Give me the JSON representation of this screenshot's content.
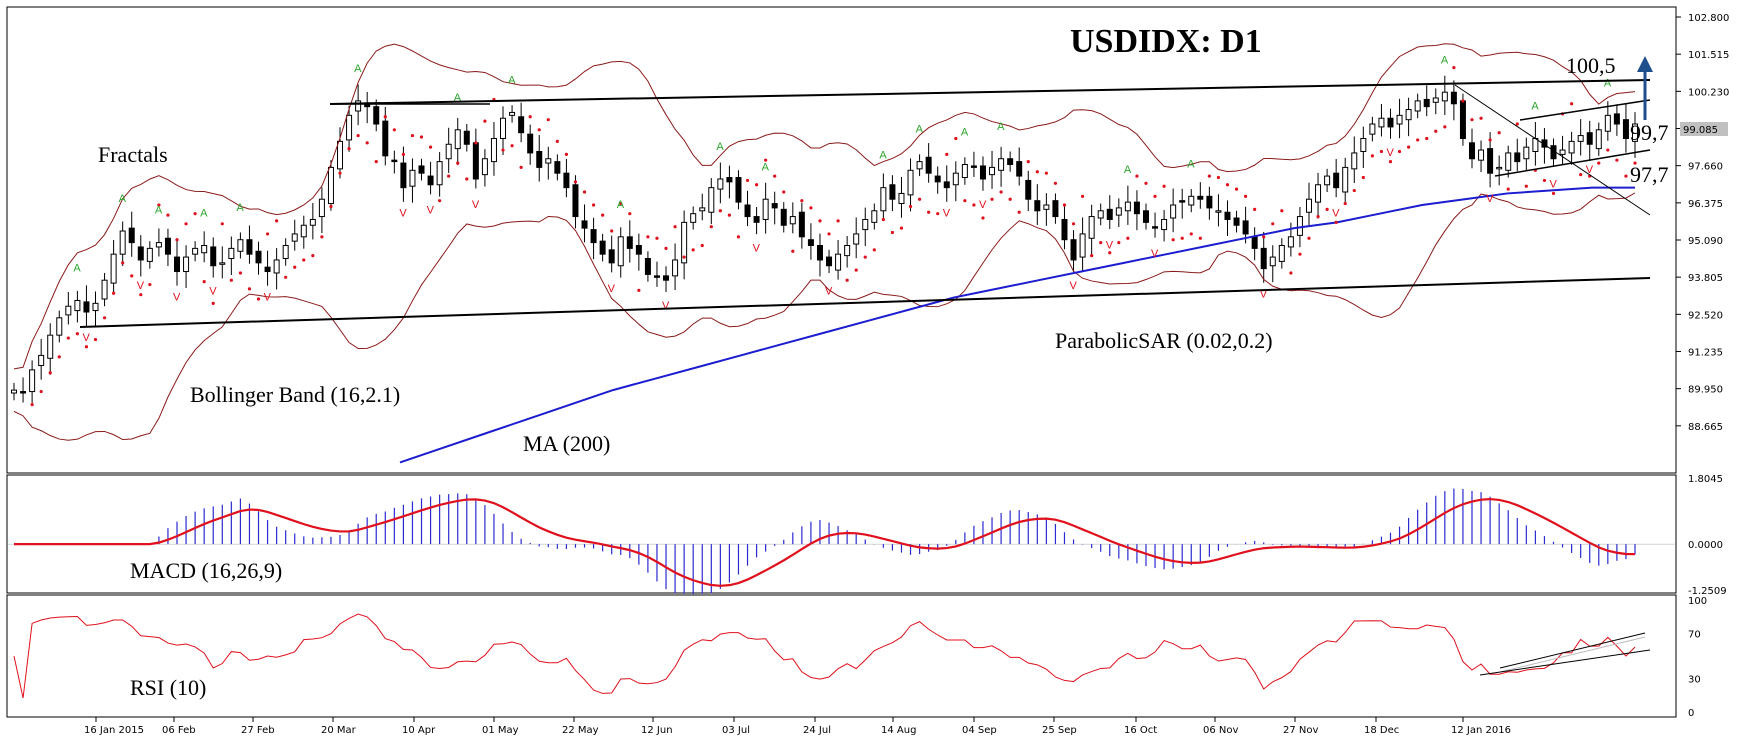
{
  "chart_data": {
    "type": "candlestick",
    "title": "USDIDX: D1",
    "price_axis_ticks": [
      "102.800",
      "101.515",
      "100.230",
      "98.945",
      "97.660",
      "96.375",
      "95.090",
      "93.805",
      "92.520",
      "91.235",
      "89.950",
      "88.665"
    ],
    "current_price": "99.085",
    "date_ticks": [
      "16 Jan 2015",
      "06 Feb",
      "27 Feb",
      "20 Mar",
      "10 Apr",
      "01 May",
      "22 May",
      "12 Jun",
      "03 Jul",
      "24 Jul",
      "14 Aug",
      "04 Sep",
      "25 Sep",
      "16 Oct",
      "06 Nov",
      "27 Nov",
      "18 Dec",
      "12 Jan 2016"
    ],
    "annotations": {
      "fractals": "Fractals",
      "bollinger": "Bollinger Band (16,2.1)",
      "ma": "MA (200)",
      "sar": "ParabolicSAR (0.02,0.2)",
      "level_top": "100,5",
      "level_mid": "99,7",
      "level_low": "97,7"
    },
    "close_series": [
      89.9,
      89.8,
      90.6,
      91.1,
      91.8,
      92.4,
      92.8,
      93.0,
      92.6,
      92.9,
      93.7,
      94.6,
      95.4,
      95.0,
      94.4,
      94.8,
      95.0,
      94.6,
      94.0,
      94.5,
      94.8,
      94.9,
      94.2,
      94.3,
      94.8,
      95.1,
      94.6,
      94.3,
      94.0,
      94.4,
      94.9,
      95.3,
      95.6,
      95.8,
      96.5,
      97.6,
      98.5,
      99.4,
      99.9,
      99.7,
      99.1,
      98.0,
      97.8,
      96.9,
      97.5,
      97.4,
      97.0,
      97.8,
      98.4,
      98.9,
      98.4,
      97.2,
      97.9,
      98.6,
      99.3,
      99.5,
      98.8,
      98.1,
      97.6,
      97.9,
      97.4,
      96.9,
      95.9,
      95.5,
      95.0,
      94.6,
      94.3,
      95.2,
      94.8,
      94.6,
      93.9,
      93.8,
      93.7,
      94.4,
      95.7,
      96.0,
      96.2,
      96.9,
      97.2,
      97.1,
      96.4,
      95.9,
      95.7,
      96.5,
      96.2,
      95.6,
      95.9,
      95.2,
      94.9,
      94.4,
      94.2,
      94.6,
      94.9,
      95.3,
      95.8,
      96.1,
      96.9,
      96.5,
      96.7,
      97.5,
      97.8,
      97.4,
      97.1,
      96.9,
      97.4,
      97.7,
      97.6,
      97.2,
      97.6,
      97.9,
      97.7,
      97.3,
      96.5,
      96.1,
      96.3,
      95.9,
      95.1,
      94.4,
      95.3,
      95.9,
      96.1,
      95.8,
      96.2,
      96.4,
      96.0,
      95.7,
      95.5,
      95.8,
      96.3,
      96.4,
      96.6,
      96.5,
      96.2,
      96.1,
      95.8,
      95.6,
      95.3,
      94.8,
      94.1,
      94.5,
      94.9,
      95.2,
      95.9,
      96.5,
      97.0,
      97.3,
      96.9,
      97.6,
      98.1,
      98.6,
      99.1,
      99.3,
      99.0,
      99.4,
      99.6,
      99.9,
      99.7,
      100.0,
      100.2,
      99.8,
      98.6,
      97.9,
      98.2,
      97.4,
      97.6,
      98.1,
      97.8,
      98.3,
      98.6,
      98.3,
      97.9,
      98.2,
      98.5,
      98.7,
      98.4,
      98.9,
      99.4,
      99.1,
      98.6,
      99.1
    ],
    "ma200": [
      87.4,
      87.9,
      88.4,
      88.9,
      89.4,
      89.9,
      90.3,
      90.7,
      91.1,
      91.5,
      91.9,
      92.3,
      92.7,
      93.1,
      93.4,
      93.7,
      94.0,
      94.3,
      94.6,
      94.9,
      95.2,
      95.5,
      95.7,
      96.0,
      96.3,
      96.5,
      96.7,
      96.8,
      96.9,
      96.9
    ],
    "rsi_ticks": [
      "100",
      "70",
      "30",
      "0"
    ],
    "macd_ticks": [
      "1.8045",
      "0.0000",
      "-1.2509"
    ],
    "indicators": {
      "macd": "MACD (16,26,9)",
      "rsi": "RSI (10)"
    }
  }
}
